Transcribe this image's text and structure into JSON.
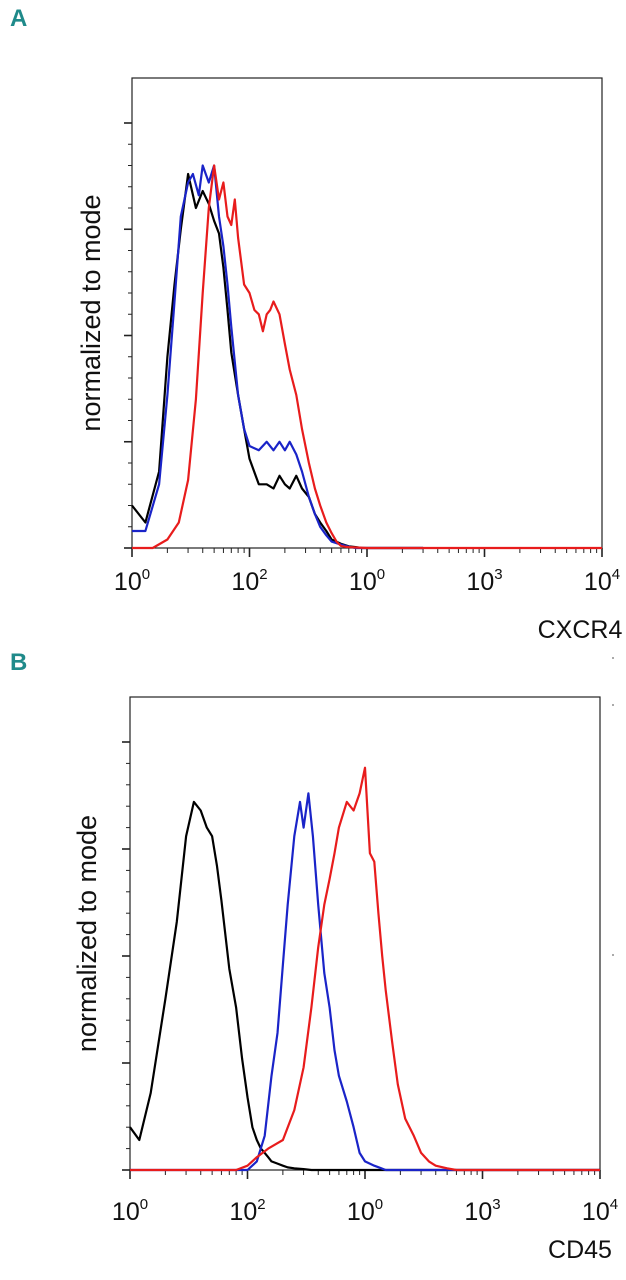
{
  "chart_data": [
    {
      "panel": "A",
      "type": "line",
      "ylabel": "normalized to mode",
      "xlabel": "CXCR4",
      "x_scale": "log",
      "xlim": [
        1,
        10000
      ],
      "ylim": [
        0,
        100
      ],
      "x_tick_labels": [
        {
          "base": "10",
          "exp": "0"
        },
        {
          "base": "10",
          "exp": "2"
        },
        {
          "base": "10",
          "exp": "0"
        },
        {
          "base": "10",
          "exp": "3"
        },
        {
          "base": "10",
          "exp": "4"
        }
      ],
      "series": [
        {
          "color": "#000000",
          "x": [
            1,
            1.3,
            1.7,
            2,
            2.3,
            2.6,
            3,
            3.5,
            4,
            4.5,
            5,
            5.5,
            6,
            6.5,
            7,
            8,
            9,
            10,
            12,
            14,
            16,
            18,
            20,
            22,
            25,
            28,
            32,
            36,
            40,
            45,
            50,
            60,
            70,
            80,
            90,
            100,
            150,
            300
          ],
          "y": [
            10,
            6,
            18,
            45,
            62,
            75,
            88,
            80,
            84,
            81,
            77,
            74,
            66,
            56,
            46,
            36,
            28,
            21,
            15,
            15,
            14,
            17,
            15,
            14,
            17,
            14,
            12,
            8,
            6,
            4,
            2,
            1,
            0.4,
            0.2,
            0,
            0,
            0,
            0
          ]
        },
        {
          "color": "#1a24c8",
          "x": [
            1,
            1.3,
            1.7,
            2,
            2.3,
            2.6,
            3,
            3.3,
            3.7,
            4,
            4.5,
            5,
            5.5,
            6,
            6.5,
            7,
            8,
            9,
            10,
            12,
            14,
            16,
            18,
            20,
            22,
            25,
            28,
            32,
            36,
            40,
            45,
            50,
            60,
            70,
            80,
            100,
            150,
            300
          ],
          "y": [
            4,
            4,
            15,
            36,
            58,
            78,
            86,
            88,
            83,
            90,
            86,
            90,
            78,
            71,
            62,
            52,
            36,
            28,
            24,
            23,
            25,
            23,
            25,
            23,
            25,
            22,
            18,
            12,
            8,
            5,
            3,
            1.5,
            0.8,
            0.3,
            0,
            0,
            0,
            0
          ]
        },
        {
          "color": "#e81c1c",
          "x": [
            1,
            1.5,
            2,
            2.5,
            3,
            3.5,
            4,
            4.5,
            5,
            5.5,
            6,
            6.5,
            7,
            7.5,
            8,
            9,
            10,
            11,
            12,
            13,
            14,
            15,
            16,
            18,
            20,
            22,
            25,
            28,
            32,
            36,
            40,
            45,
            50,
            55,
            60,
            65,
            70,
            100,
            200,
            10000
          ],
          "y": [
            0,
            0,
            2,
            6,
            16,
            35,
            60,
            80,
            90,
            82,
            86,
            78,
            76,
            82,
            73,
            62,
            60,
            56,
            55,
            51,
            55,
            56,
            58,
            55,
            48,
            42,
            36,
            28,
            20,
            14,
            10,
            6,
            3.5,
            1.5,
            0.5,
            0.3,
            0.2,
            0,
            0,
            0
          ]
        }
      ]
    },
    {
      "panel": "B",
      "type": "line",
      "ylabel": "normalized to mode",
      "xlabel": "CD45",
      "x_scale": "log",
      "xlim": [
        1,
        10000
      ],
      "ylim": [
        0,
        100
      ],
      "x_tick_labels": [
        {
          "base": "10",
          "exp": "0"
        },
        {
          "base": "10",
          "exp": "2"
        },
        {
          "base": "10",
          "exp": "0"
        },
        {
          "base": "10",
          "exp": "3"
        },
        {
          "base": "10",
          "exp": "4"
        }
      ],
      "series": [
        {
          "color": "#000000",
          "x": [
            1,
            1.2,
            1.5,
            2,
            2.5,
            3,
            3.5,
            4,
            4.5,
            5,
            5.5,
            6,
            7,
            8,
            9,
            10,
            11,
            12,
            13,
            14,
            15,
            16,
            18,
            20,
            22,
            25,
            30,
            35,
            40,
            50,
            60,
            10000
          ],
          "y": [
            10,
            7,
            18,
            40,
            58,
            78,
            86,
            84,
            80,
            78,
            71,
            63,
            47,
            38,
            26,
            17,
            10,
            7,
            5,
            4,
            3,
            2,
            1.5,
            1,
            0.6,
            0.4,
            0.2,
            0,
            0,
            0,
            0,
            0
          ]
        },
        {
          "color": "#1a24c8",
          "x": [
            1,
            5,
            10,
            12,
            14,
            16,
            18,
            20,
            22,
            25,
            28,
            30,
            33,
            36,
            40,
            45,
            50,
            55,
            60,
            70,
            80,
            90,
            100,
            120,
            150,
            200,
            10000
          ],
          "y": [
            0,
            0,
            0,
            2,
            8,
            22,
            32,
            48,
            62,
            78,
            86,
            80,
            88,
            78,
            62,
            46,
            38,
            28,
            22,
            16,
            10,
            4,
            2,
            1,
            0,
            0,
            0
          ]
        },
        {
          "color": "#e81c1c",
          "x": [
            1,
            8,
            10,
            12,
            15,
            20,
            25,
            30,
            35,
            40,
            45,
            50,
            55,
            60,
            70,
            80,
            90,
            100,
            110,
            120,
            130,
            140,
            150,
            170,
            190,
            220,
            260,
            300,
            350,
            400,
            500,
            600,
            10000
          ],
          "y": [
            0,
            0,
            1,
            3,
            5,
            7,
            14,
            24,
            38,
            52,
            62,
            68,
            74,
            80,
            86,
            84,
            88,
            94,
            74,
            72,
            60,
            50,
            42,
            30,
            20,
            12,
            8,
            4,
            2,
            1,
            0.4,
            0,
            0
          ]
        }
      ]
    }
  ]
}
